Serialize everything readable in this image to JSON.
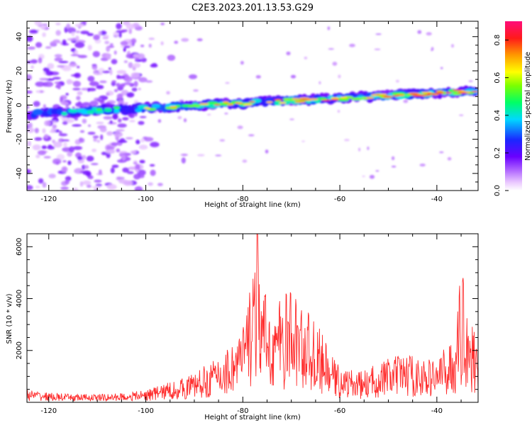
{
  "title": "C2E3.2023.201.13.53.G29",
  "chart_data": [
    {
      "type": "heatmap",
      "xlabel": "Height of straight line (km)",
      "ylabel": "Frequency (Hz)",
      "xlim": [
        -124.5,
        -31.5
      ],
      "ylim": [
        -50,
        49
      ],
      "xticks": [
        -120,
        -100,
        -80,
        -60,
        -40
      ],
      "yticks": [
        -40,
        -20,
        0,
        20,
        40
      ],
      "colorbar": {
        "label": "Normalized spectral amplitude",
        "range": [
          0,
          0.9
        ],
        "ticks": [
          0.0,
          0.2,
          0.4,
          0.6,
          0.8
        ],
        "colormap": "rainbow (white to purple to blue to cyan to green to yellow to orange to red to magenta)"
      },
      "features": {
        "trace": "narrow high-amplitude band; frequency rises roughly linearly from about -5 Hz at -122 km to about 8 Hz at -33 km, strongest (0.8-0.9) between -50 and -33 km",
        "noise": "scattered low-amplitude (0.0-0.2) patches across all frequencies at heights below -100 km"
      },
      "grid": false,
      "legend": "none"
    },
    {
      "type": "line",
      "xlabel": "Height of straight line (km)",
      "ylabel": "SNR (10 * v/v)",
      "xlim": [
        -124.5,
        -31.5
      ],
      "ylim": [
        0,
        6500
      ],
      "xticks": [
        -120,
        -100,
        -80,
        -60,
        -40
      ],
      "yticks": [
        2000,
        4000,
        6000
      ],
      "color": "#ff2d2d",
      "x": [
        -124,
        -120,
        -116,
        -112,
        -108,
        -104,
        -100,
        -96,
        -92,
        -88,
        -84,
        -82,
        -80,
        -79,
        -78,
        -77,
        -76,
        -74,
        -72,
        -70,
        -68,
        -66,
        -64,
        -62,
        -60,
        -58,
        -56,
        -54,
        -52,
        -50,
        -48,
        -46,
        -44,
        -42,
        -40,
        -38,
        -36,
        -35,
        -34,
        -33,
        -32
      ],
      "y": [
        450,
        350,
        300,
        300,
        300,
        350,
        450,
        700,
        900,
        1300,
        1800,
        2300,
        2800,
        3600,
        5600,
        6500,
        4200,
        3500,
        3800,
        4200,
        3600,
        3200,
        2600,
        1800,
        1300,
        1200,
        1100,
        1200,
        1500,
        1600,
        1700,
        1800,
        1600,
        1500,
        1700,
        2000,
        2600,
        5000,
        4600,
        2800,
        2700
      ]
    }
  ]
}
